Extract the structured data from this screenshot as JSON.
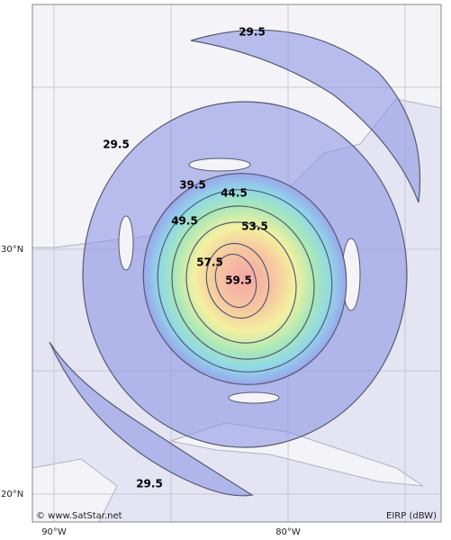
{
  "map": {
    "contour_labels": [
      "29.5",
      "29.5",
      "29.5",
      "39.5",
      "44.5",
      "49.5",
      "53.5",
      "57.5",
      "59.5"
    ],
    "longitude_labels": [
      "90°W",
      "80°W"
    ],
    "latitude_labels": [
      "30°N",
      "20°N"
    ],
    "credit": "© www.SatStar.net",
    "legend_unit": "EIRP (dBW)"
  }
}
